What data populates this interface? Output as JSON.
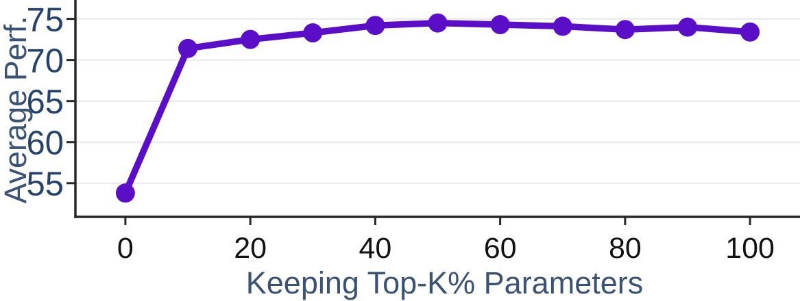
{
  "chart_data": {
    "type": "line",
    "title": "",
    "xlabel": "Keeping Top-K% Parameters",
    "ylabel": "Average Perf.",
    "x": [
      0,
      10,
      20,
      30,
      40,
      50,
      60,
      70,
      80,
      90,
      100
    ],
    "y": [
      53.8,
      71.4,
      72.5,
      73.3,
      74.2,
      74.5,
      74.3,
      74.1,
      73.7,
      74.0,
      73.4
    ],
    "x_ticks": [
      0,
      20,
      40,
      60,
      80,
      100
    ],
    "y_ticks": [
      55,
      60,
      65,
      70,
      75
    ],
    "xlim": [
      -8,
      108
    ],
    "ylim": [
      50.9,
      77.3
    ],
    "grid": "horizontal-only",
    "legend": "none",
    "marker": "circle",
    "colors": {
      "line": "#5a0ec8",
      "marker": "#5a0ec8",
      "grid": "#e8e8e8",
      "spine": "#262626",
      "tick_mark": "#262626",
      "x_tick_label": "#121212",
      "y_tick_label": "#25426b",
      "axis_label": "#3b5273"
    }
  }
}
